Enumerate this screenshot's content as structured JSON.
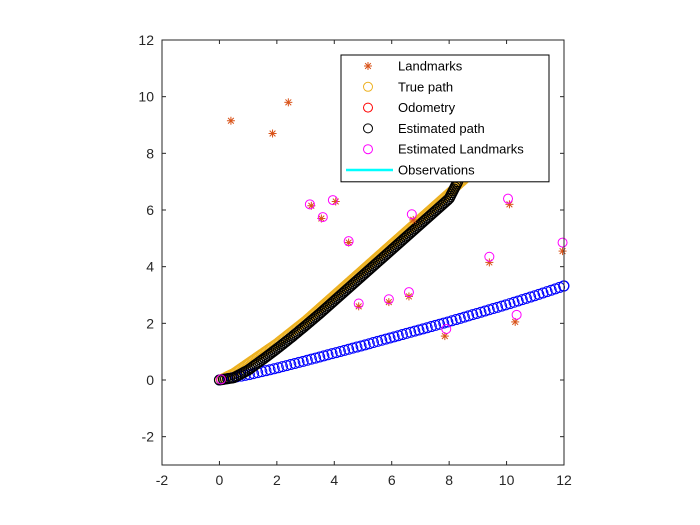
{
  "chart_data": {
    "type": "scatter",
    "xlim": [
      -2,
      12
    ],
    "ylim": [
      -3,
      12
    ],
    "x_ticks": [
      -2,
      0,
      2,
      4,
      6,
      8,
      10,
      12
    ],
    "y_ticks": [
      -2,
      0,
      2,
      4,
      6,
      8,
      10,
      12
    ],
    "grid": false,
    "legend_position": "top-right",
    "colors": {
      "landmarks": "#D95319",
      "true_path": "#EDB120",
      "odometry": "#FF0000",
      "estimated_path": "#000000",
      "estimated_landmarks": "#FF00FF",
      "observations": "#00FFFF",
      "odometry_trace": "#0000FF"
    },
    "series": [
      {
        "name": "Landmarks",
        "marker": "asterisk",
        "points": [
          [
            0.4,
            9.15
          ],
          [
            1.85,
            8.7
          ],
          [
            2.4,
            9.8
          ],
          [
            3.2,
            6.15
          ],
          [
            3.55,
            5.7
          ],
          [
            4.05,
            6.3
          ],
          [
            4.5,
            4.85
          ],
          [
            4.85,
            2.6
          ],
          [
            5.9,
            2.75
          ],
          [
            6.6,
            2.95
          ],
          [
            6.75,
            5.65
          ],
          [
            7.85,
            1.55
          ],
          [
            9.4,
            4.15
          ],
          [
            10.1,
            6.2
          ],
          [
            10.3,
            2.05
          ],
          [
            11.95,
            4.55
          ]
        ]
      },
      {
        "name": "True path",
        "marker": "circle",
        "x": [
          0,
          0.5,
          1,
          1.5,
          2,
          2.5,
          3,
          3.5,
          4,
          4.5,
          5,
          5.5,
          6,
          6.5,
          7,
          7.5,
          8,
          8.5,
          9
        ],
        "y": [
          0,
          0.25,
          0.6,
          0.95,
          1.3,
          1.7,
          2.1,
          2.55,
          3.0,
          3.45,
          3.9,
          4.35,
          4.8,
          5.25,
          5.7,
          6.15,
          6.6,
          7.05,
          7.5
        ]
      },
      {
        "name": "Odometry",
        "marker": "circle",
        "x": [
          0,
          1,
          2,
          3,
          4,
          5,
          6,
          7,
          8,
          9,
          10,
          11,
          12
        ],
        "y": [
          0,
          0.18,
          0.42,
          0.68,
          0.95,
          1.22,
          1.5,
          1.78,
          2.06,
          2.36,
          2.66,
          2.98,
          3.32
        ]
      },
      {
        "name": "Estimated path",
        "marker": "circle",
        "x": [
          0,
          0.5,
          1,
          1.5,
          2,
          2.5,
          3,
          3.5,
          4,
          4.5,
          5,
          5.5,
          6,
          6.5,
          7,
          7.5,
          8,
          8.3
        ],
        "y": [
          0,
          0.08,
          0.35,
          0.72,
          1.1,
          1.5,
          1.92,
          2.35,
          2.8,
          3.25,
          3.7,
          4.15,
          4.6,
          5.05,
          5.5,
          5.95,
          6.4,
          7.0
        ]
      },
      {
        "name": "Estimated Landmarks",
        "marker": "circle",
        "points": [
          [
            0.05,
            0.02
          ],
          [
            3.15,
            6.2
          ],
          [
            3.6,
            5.75
          ],
          [
            3.95,
            6.35
          ],
          [
            4.5,
            4.9
          ],
          [
            4.85,
            2.7
          ],
          [
            5.9,
            2.85
          ],
          [
            6.6,
            3.1
          ],
          [
            6.7,
            5.85
          ],
          [
            7.9,
            1.8
          ],
          [
            9.4,
            4.35
          ],
          [
            10.05,
            6.4
          ],
          [
            10.35,
            2.3
          ],
          [
            11.95,
            4.85
          ]
        ]
      },
      {
        "name": "Observations",
        "marker": "line",
        "points": []
      }
    ]
  }
}
